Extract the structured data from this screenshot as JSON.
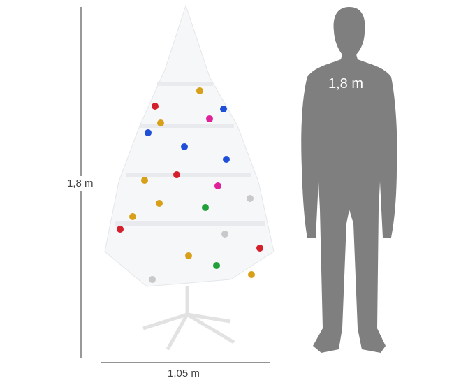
{
  "dimensions": {
    "height_label": "1,8 m",
    "width_label": "1,05 m",
    "person_height_label": "1,8 m"
  },
  "colors": {
    "silhouette": "#7f7f7f",
    "dimension_line": "#555555",
    "tree": "#ffffff"
  },
  "ornament_colors": [
    "#d4202a",
    "#1f4fd8",
    "#e0219a",
    "#d8a018",
    "#21a03a",
    "#c9c9c9"
  ]
}
